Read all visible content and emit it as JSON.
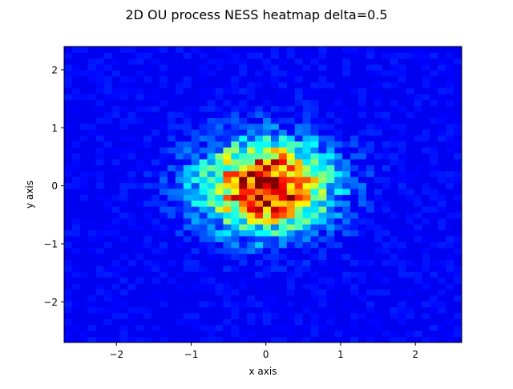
{
  "chart_data": {
    "type": "heatmap",
    "title": "2D OU process NESS heatmap delta=0.5",
    "xlabel": "x axis",
    "ylabel": "y axis",
    "xlim": [
      -2.7,
      2.62
    ],
    "ylim": [
      -2.7,
      2.4
    ],
    "xticks": [
      -2,
      -1,
      0,
      1,
      2
    ],
    "yticks": [
      -2,
      -1,
      0,
      1,
      2
    ],
    "xtick_labels": [
      "−2",
      "−1",
      "0",
      "1",
      "2"
    ],
    "ytick_labels": [
      "−2",
      "−1",
      "0",
      "1",
      "2"
    ],
    "colormap": "jet",
    "bins": [
      50,
      50
    ],
    "distribution": {
      "center": [
        0.0,
        0.0
      ],
      "sigma": [
        0.55,
        0.5
      ],
      "peak_count": 12
    },
    "grid": false,
    "legend": "none"
  }
}
